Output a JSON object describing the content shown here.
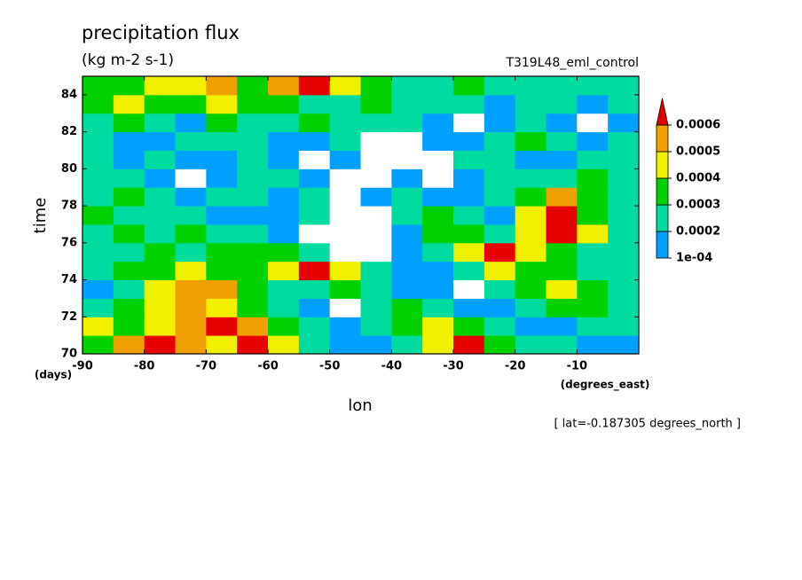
{
  "chart_data": {
    "type": "contourf",
    "title": "precipitation flux",
    "subtitle": "(kg m-2 s-1)",
    "run_label": "T319L48_eml_control",
    "x_label": "lon",
    "x_units": "(degrees_east)",
    "y_label": "time",
    "y_units": "(days)",
    "annotation": "[ lat=-0.187305 degrees_north ]",
    "xlim": [
      -90,
      0
    ],
    "ylim": [
      70,
      85
    ],
    "xticks": [
      -90,
      -80,
      -70,
      -60,
      -50,
      -40,
      -30,
      -20,
      -10
    ],
    "yticks": [
      70,
      72,
      74,
      76,
      78,
      80,
      82,
      84
    ],
    "levels": [
      {
        "value": 0.0001,
        "label": "1e-04"
      },
      0.0002,
      0.0003,
      0.0004,
      0.0005,
      0.0006
    ],
    "colors": [
      "#ffffff",
      "#00a0ff",
      "#00dca0",
      "#00d200",
      "#f0f000",
      "#f0a000",
      "#e60000"
    ],
    "x": [
      -87.5,
      -82.5,
      -77.5,
      -72.5,
      -67.5,
      -62.5,
      -57.5,
      -52.5,
      -47.5,
      -42.5,
      -37.5,
      -32.5,
      -27.5,
      -22.5,
      -17.5,
      -12.5,
      -7.5,
      -2.5
    ],
    "y": [
      70.5,
      71.5,
      72.5,
      73.5,
      74.5,
      75.5,
      76.5,
      77.5,
      78.5,
      79.5,
      80.5,
      81.5,
      82.5,
      83.5,
      84.5
    ],
    "z": [
      [
        0.0003,
        0.0005,
        0.0006,
        0.0005,
        0.0004,
        0.0006,
        0.0004,
        0.0002,
        0.0001,
        0.00015,
        0.0002,
        0.0004,
        0.0006,
        0.0003,
        0.0002,
        0.0002,
        0.00015,
        0.0001
      ],
      [
        0.0004,
        0.0003,
        0.0004,
        0.0005,
        0.0006,
        0.0005,
        0.0003,
        0.0002,
        0.0001,
        0.0002,
        0.0003,
        0.0004,
        0.0003,
        0.0002,
        0.0001,
        0.00015,
        0.0002,
        0.0002
      ],
      [
        0.0002,
        0.0003,
        0.0004,
        0.0005,
        0.0004,
        0.0003,
        0.0002,
        0.00015,
        5e-05,
        0.0002,
        0.0003,
        0.0002,
        0.00015,
        0.0001,
        0.0002,
        0.0003,
        0.0003,
        0.0002
      ],
      [
        0.00015,
        0.0002,
        0.0004,
        0.0005,
        0.0005,
        0.0003,
        0.0002,
        0.0002,
        0.0003,
        0.0002,
        0.00015,
        0.0001,
        5e-05,
        0.0002,
        0.0003,
        0.0004,
        0.0003,
        0.0002
      ],
      [
        0.0002,
        0.0003,
        0.0003,
        0.0004,
        0.0003,
        0.0003,
        0.0004,
        0.0006,
        0.0004,
        0.0002,
        0.0001,
        0.00015,
        0.0002,
        0.0004,
        0.0003,
        0.0003,
        0.0002,
        0.0002
      ],
      [
        0.0002,
        0.0002,
        0.0003,
        0.0002,
        0.0003,
        0.0003,
        0.0003,
        0.0002,
        5e-05,
        5e-05,
        0.0001,
        0.0002,
        0.0004,
        0.0006,
        0.0004,
        0.0003,
        0.0002,
        0.0002
      ],
      [
        0.0002,
        0.0003,
        0.0002,
        0.0003,
        0.0002,
        0.0002,
        0.0001,
        5e-05,
        5e-05,
        5e-05,
        0.0001,
        0.0003,
        0.0003,
        0.0002,
        0.0004,
        0.0006,
        0.0004,
        0.0002
      ],
      [
        0.0003,
        0.0002,
        0.0002,
        0.0002,
        0.0001,
        0.00015,
        0.0001,
        0.0002,
        5e-05,
        5e-05,
        0.0002,
        0.0003,
        0.0002,
        0.00015,
        0.0004,
        0.0006,
        0.0003,
        0.0002
      ],
      [
        0.0002,
        0.0003,
        0.0002,
        0.00015,
        0.0002,
        0.0002,
        0.0001,
        0.0002,
        5e-05,
        0.0001,
        0.0002,
        0.00015,
        0.0001,
        0.0002,
        0.0003,
        0.0005,
        0.0003,
        0.0002
      ],
      [
        0.0002,
        0.0002,
        0.0001,
        5e-05,
        0.0001,
        0.0002,
        0.0002,
        0.0001,
        5e-05,
        5e-05,
        0.0001,
        5e-05,
        0.0001,
        0.0002,
        0.0002,
        0.0002,
        0.0003,
        0.0002
      ],
      [
        0.0002,
        0.00015,
        0.0002,
        0.0001,
        0.00015,
        0.0002,
        0.0001,
        5e-05,
        0.0001,
        5e-05,
        5e-05,
        5e-05,
        0.0002,
        0.0002,
        0.00015,
        0.0001,
        0.0002,
        0.0002
      ],
      [
        0.0002,
        0.0001,
        0.00015,
        0.0002,
        0.0002,
        0.0002,
        0.0001,
        0.00015,
        0.0002,
        5e-05,
        5e-05,
        0.0001,
        0.0001,
        0.0002,
        0.0003,
        0.0002,
        0.00015,
        0.0002
      ],
      [
        0.0002,
        0.0003,
        0.0002,
        0.00015,
        0.0003,
        0.0002,
        0.0002,
        0.0003,
        0.0002,
        0.0002,
        0.0002,
        0.0001,
        5e-05,
        0.0001,
        0.0002,
        0.0001,
        5e-05,
        0.0001
      ],
      [
        0.0003,
        0.0004,
        0.0003,
        0.0003,
        0.0004,
        0.0003,
        0.0003,
        0.0002,
        0.0002,
        0.0003,
        0.0002,
        0.0002,
        0.0002,
        0.0001,
        0.0002,
        0.0002,
        0.0001,
        0.0002
      ],
      [
        0.0003,
        0.0003,
        0.0004,
        0.0004,
        0.0005,
        0.0003,
        0.0005,
        0.0006,
        0.0004,
        0.0003,
        0.0002,
        0.0002,
        0.0003,
        0.0002,
        0.0002,
        0.0002,
        0.0002,
        0.0002
      ]
    ]
  }
}
